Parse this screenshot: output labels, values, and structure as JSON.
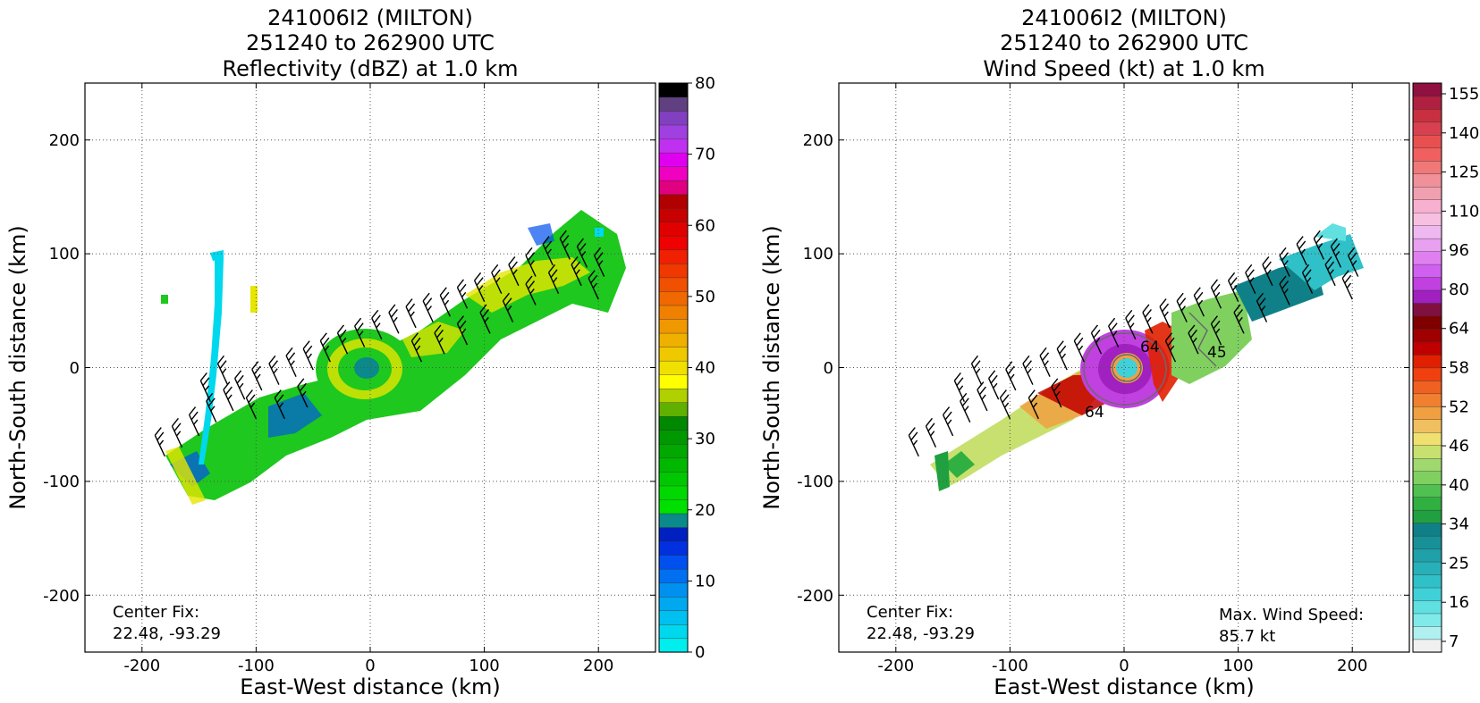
{
  "chart_data": [
    {
      "type": "heatmap",
      "title_lines": [
        "241006I2 (MILTON)",
        "251240 to 262900 UTC",
        "Reflectivity (dBZ) at 1.0 km"
      ],
      "xlabel": "East-West distance (km)",
      "ylabel": "North-South distance (km)",
      "xlim": [
        -250,
        250
      ],
      "ylim": [
        -250,
        250
      ],
      "xticks": [
        -200,
        -100,
        0,
        100,
        200
      ],
      "yticks": [
        -200,
        -100,
        0,
        100,
        200
      ],
      "grid": true,
      "annotation_lines": [
        "Center Fix:",
        "22.48, -93.29"
      ],
      "colorbar": {
        "min": 0,
        "max": 80,
        "ticks": [
          0,
          10,
          20,
          30,
          40,
          50,
          60,
          70,
          80
        ],
        "colors": [
          "#00eeee",
          "#00d8ee",
          "#00c0f0",
          "#00a8f0",
          "#0090f0",
          "#0070f0",
          "#0050f0",
          "#0030e0",
          "#0020c0",
          "#0a8a8a",
          "#00e000",
          "#00d800",
          "#00c800",
          "#00b800",
          "#00a800",
          "#009800",
          "#008800",
          "#60b000",
          "#b0d000",
          "#ffff00",
          "#f0e000",
          "#f0c800",
          "#f0b000",
          "#f09800",
          "#f08000",
          "#f06800",
          "#f05000",
          "#f03800",
          "#f02000",
          "#f00000",
          "#e00000",
          "#c80000",
          "#b00000",
          "#e00080",
          "#f000c0",
          "#e000f0",
          "#c030f0",
          "#a040e0",
          "#8040c0",
          "#604080",
          "#000000"
        ]
      },
      "wind_field": "barbs"
    },
    {
      "type": "heatmap",
      "title_lines": [
        "241006I2 (MILTON)",
        "251240 to 262900 UTC",
        "Wind Speed (kt) at 1.0 km"
      ],
      "xlabel": "East-West distance (km)",
      "ylabel": "North-South distance (km)",
      "xlim": [
        -250,
        250
      ],
      "ylim": [
        -250,
        250
      ],
      "xticks": [
        -200,
        -100,
        0,
        100,
        200
      ],
      "yticks": [
        -200,
        -100,
        0,
        100,
        200
      ],
      "grid": true,
      "annotation_left_lines": [
        "Center Fix:",
        "22.48, -93.29"
      ],
      "annotation_right_lines": [
        "Max. Wind Speed:",
        "85.7 kt"
      ],
      "contour_labels": [
        "64",
        "64",
        "45"
      ],
      "colorbar": {
        "ticks": [
          "7",
          "16",
          "25",
          "34",
          "40",
          "46",
          "52",
          "58",
          "64",
          "80",
          "96",
          "110",
          "125",
          "140",
          "155"
        ],
        "colors": [
          "#f0f0f0",
          "#b0f0f0",
          "#80eaea",
          "#60e0e0",
          "#40d0d8",
          "#30c0c8",
          "#28b0b8",
          "#20a0a8",
          "#189098",
          "#108088",
          "#20a040",
          "#30b040",
          "#50c050",
          "#80d060",
          "#a0d870",
          "#c8e070",
          "#f0e070",
          "#f0c060",
          "#f0a040",
          "#f08030",
          "#f06020",
          "#f04010",
          "#e02000",
          "#c00000",
          "#a00000",
          "#800000",
          "#801040",
          "#a020c0",
          "#c040e0",
          "#d060f0",
          "#e080f0",
          "#e8a0f0",
          "#f0b8f0",
          "#f8c0e0",
          "#f8b0d0",
          "#f0a0b0",
          "#f09098",
          "#f07878",
          "#f06060",
          "#e85050",
          "#d84050",
          "#c83040",
          "#b02040",
          "#901040"
        ]
      },
      "wind_field": "barbs"
    }
  ]
}
